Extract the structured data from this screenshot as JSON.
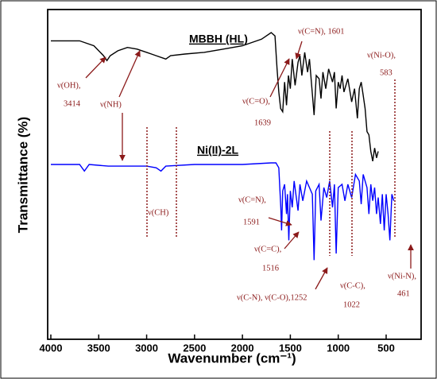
{
  "chart_data": {
    "type": "line",
    "xlabel": "Wavenumber (cm⁻¹)",
    "ylabel": "Transmittance (%)",
    "xlim": [
      4033,
      135
    ],
    "ylim": [
      0,
      100
    ],
    "xticks": [
      4000,
      3500,
      3000,
      2500,
      2000,
      1500,
      1000,
      500
    ],
    "series": [
      {
        "name": "MBBH (HL)",
        "color": "#000000",
        "x": [
          4000,
          3700,
          3550,
          3450,
          3414,
          3380,
          3300,
          3200,
          3100,
          3000,
          2950,
          2900,
          2800,
          2750,
          2600,
          2400,
          2200,
          2000,
          1800,
          1700,
          1660,
          1639,
          1620,
          1601,
          1580,
          1560,
          1540,
          1520,
          1500,
          1480,
          1450,
          1420,
          1400,
          1380,
          1350,
          1320,
          1300,
          1280,
          1252,
          1230,
          1200,
          1180,
          1160,
          1130,
          1100,
          1060,
          1040,
          1022,
          1000,
          980,
          960,
          940,
          900,
          860,
          830,
          800,
          780,
          760,
          740,
          720,
          700,
          680,
          660,
          640,
          620,
          600,
          583
        ],
        "values": [
          90.5,
          90.5,
          89,
          86,
          84.5,
          86,
          87.5,
          88.5,
          88,
          87,
          86.5,
          86,
          85,
          86,
          86.5,
          87,
          88,
          89,
          91,
          93,
          92,
          82,
          75,
          70,
          69,
          78,
          71,
          80,
          76,
          85,
          77,
          84,
          86,
          80,
          87,
          81,
          85,
          78,
          68,
          80,
          79,
          73,
          81,
          76,
          82,
          78,
          81,
          70,
          78,
          76,
          80,
          75,
          79,
          72,
          76,
          67,
          76,
          78,
          74,
          70,
          63,
          62,
          57,
          54,
          58,
          55,
          57
        ]
      },
      {
        "name": "Ni(II)-2L",
        "color": "#0000ff",
        "x": [
          4000,
          3700,
          3650,
          3600,
          3400,
          3000,
          2900,
          2850,
          2800,
          2500,
          2000,
          1700,
          1650,
          1620,
          1600,
          1591,
          1580,
          1560,
          1540,
          1530,
          1516,
          1500,
          1480,
          1460,
          1420,
          1400,
          1370,
          1330,
          1300,
          1270,
          1252,
          1235,
          1200,
          1180,
          1150,
          1120,
          1090,
          1060,
          1040,
          1022,
          1000,
          960,
          930,
          900,
          860,
          820,
          780,
          760,
          740,
          700,
          680,
          660,
          640,
          620,
          600,
          583,
          560,
          540,
          520,
          500,
          480,
          461,
          440,
          420
        ],
        "values": [
          53,
          53,
          51,
          53,
          52.5,
          52.5,
          52,
          51,
          52.5,
          53,
          53,
          53.5,
          53.5,
          52,
          40,
          33,
          45,
          47,
          38,
          44,
          30,
          45,
          40,
          48,
          39,
          47,
          42,
          48,
          46,
          44,
          24,
          45,
          47,
          36,
          46,
          43,
          48,
          40,
          47,
          26,
          46,
          47,
          42,
          47,
          43,
          50,
          48,
          41,
          50,
          46,
          38,
          47,
          42,
          46,
          38,
          43,
          35,
          44,
          33,
          44,
          38,
          30,
          44,
          42
        ]
      }
    ],
    "annotations": [
      "ν(C=N), 1601",
      "ν(Ni-O),",
      "583",
      "ν(OH),",
      "3414",
      "ν(NH)",
      "ν(C=O),",
      "1639",
      "ν(CH)",
      "ν(C=N),",
      "1591",
      "ν(C=C),",
      "1516",
      "ν(C-N), ν(C-O),1252",
      "ν(C-C),",
      "1022",
      "ν(Ni-N),",
      "461"
    ]
  }
}
